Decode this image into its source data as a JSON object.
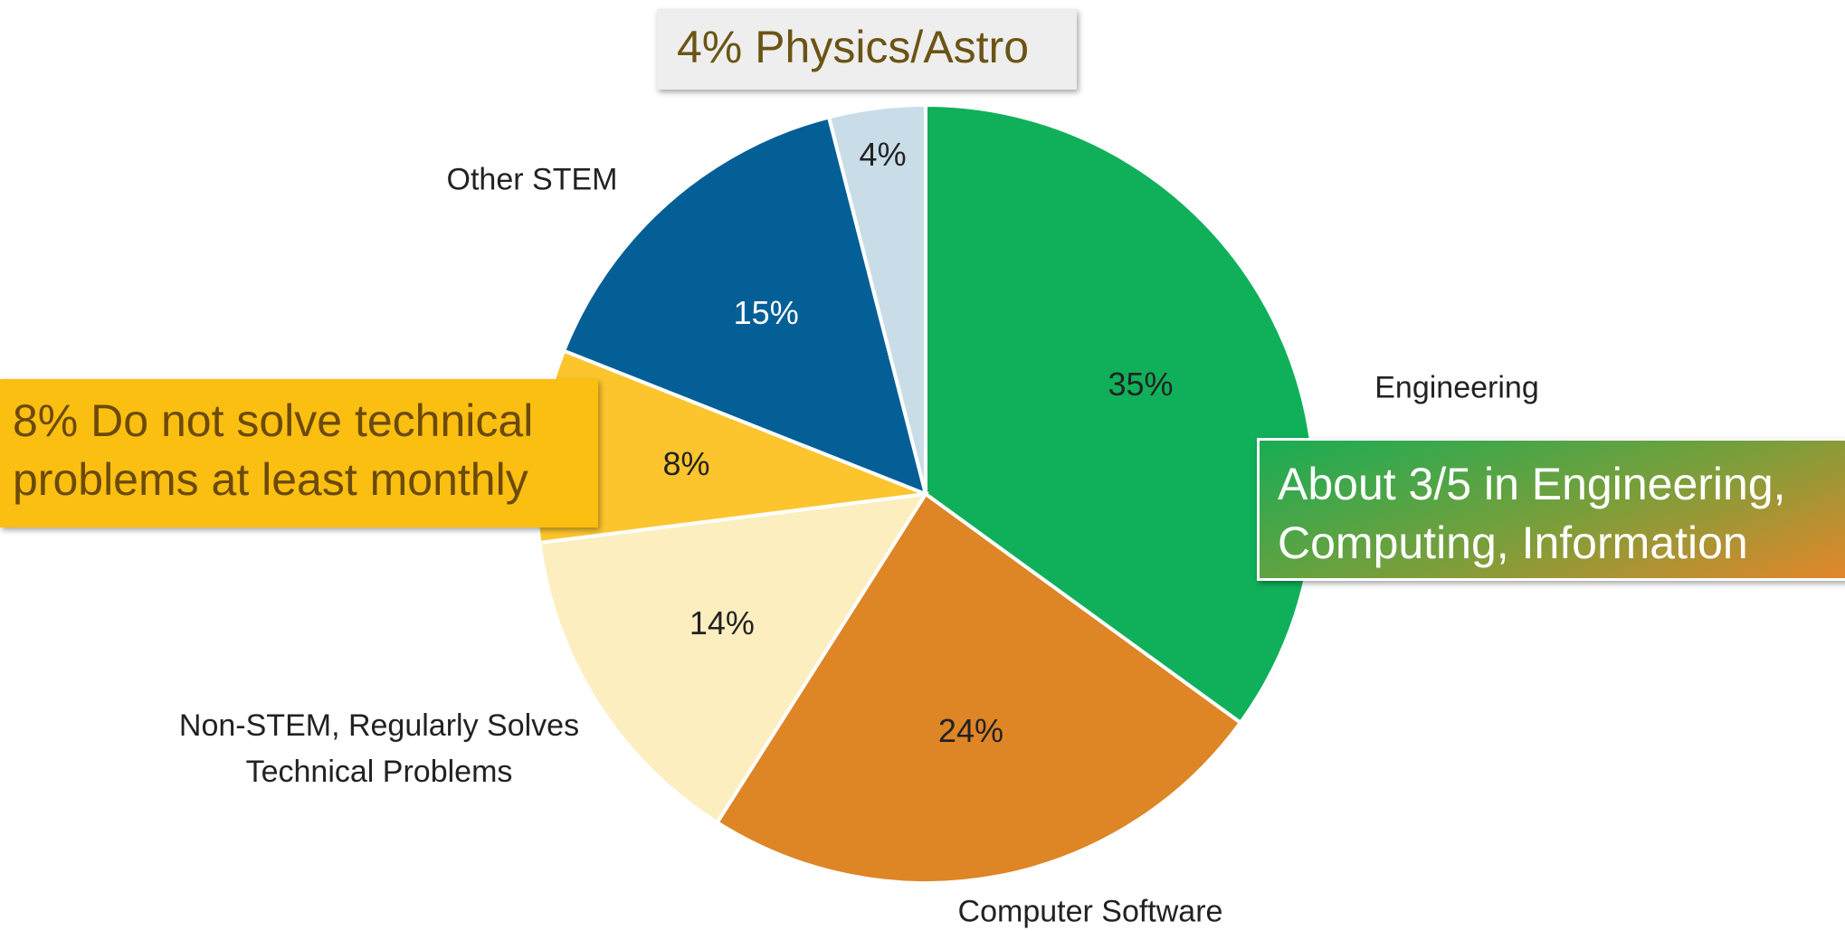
{
  "chart_data": {
    "type": "pie",
    "categories": [
      "Engineering",
      "Computer Software",
      "Non-STEM, Regularly Solves Technical Problems",
      null,
      "Other STEM",
      null
    ],
    "values": [
      35,
      24,
      14,
      8,
      15,
      4
    ],
    "value_labels": [
      "35%",
      "24%",
      "14%",
      "8%",
      "15%",
      "4%"
    ],
    "colors": [
      "#10b05a",
      "#de8526",
      "#fdeebf",
      "#fcc52e",
      "#045f96",
      "#c9dde9"
    ],
    "value_label_colors": [
      "#222222",
      "#222222",
      "#222222",
      "#222222",
      "#ffffff",
      "#222222"
    ],
    "annotations": [
      "4% Physics/Astro",
      "8% Do not solve technical problems at least monthly",
      "About 3/5 in Engineering, Computing, Information"
    ]
  }
}
